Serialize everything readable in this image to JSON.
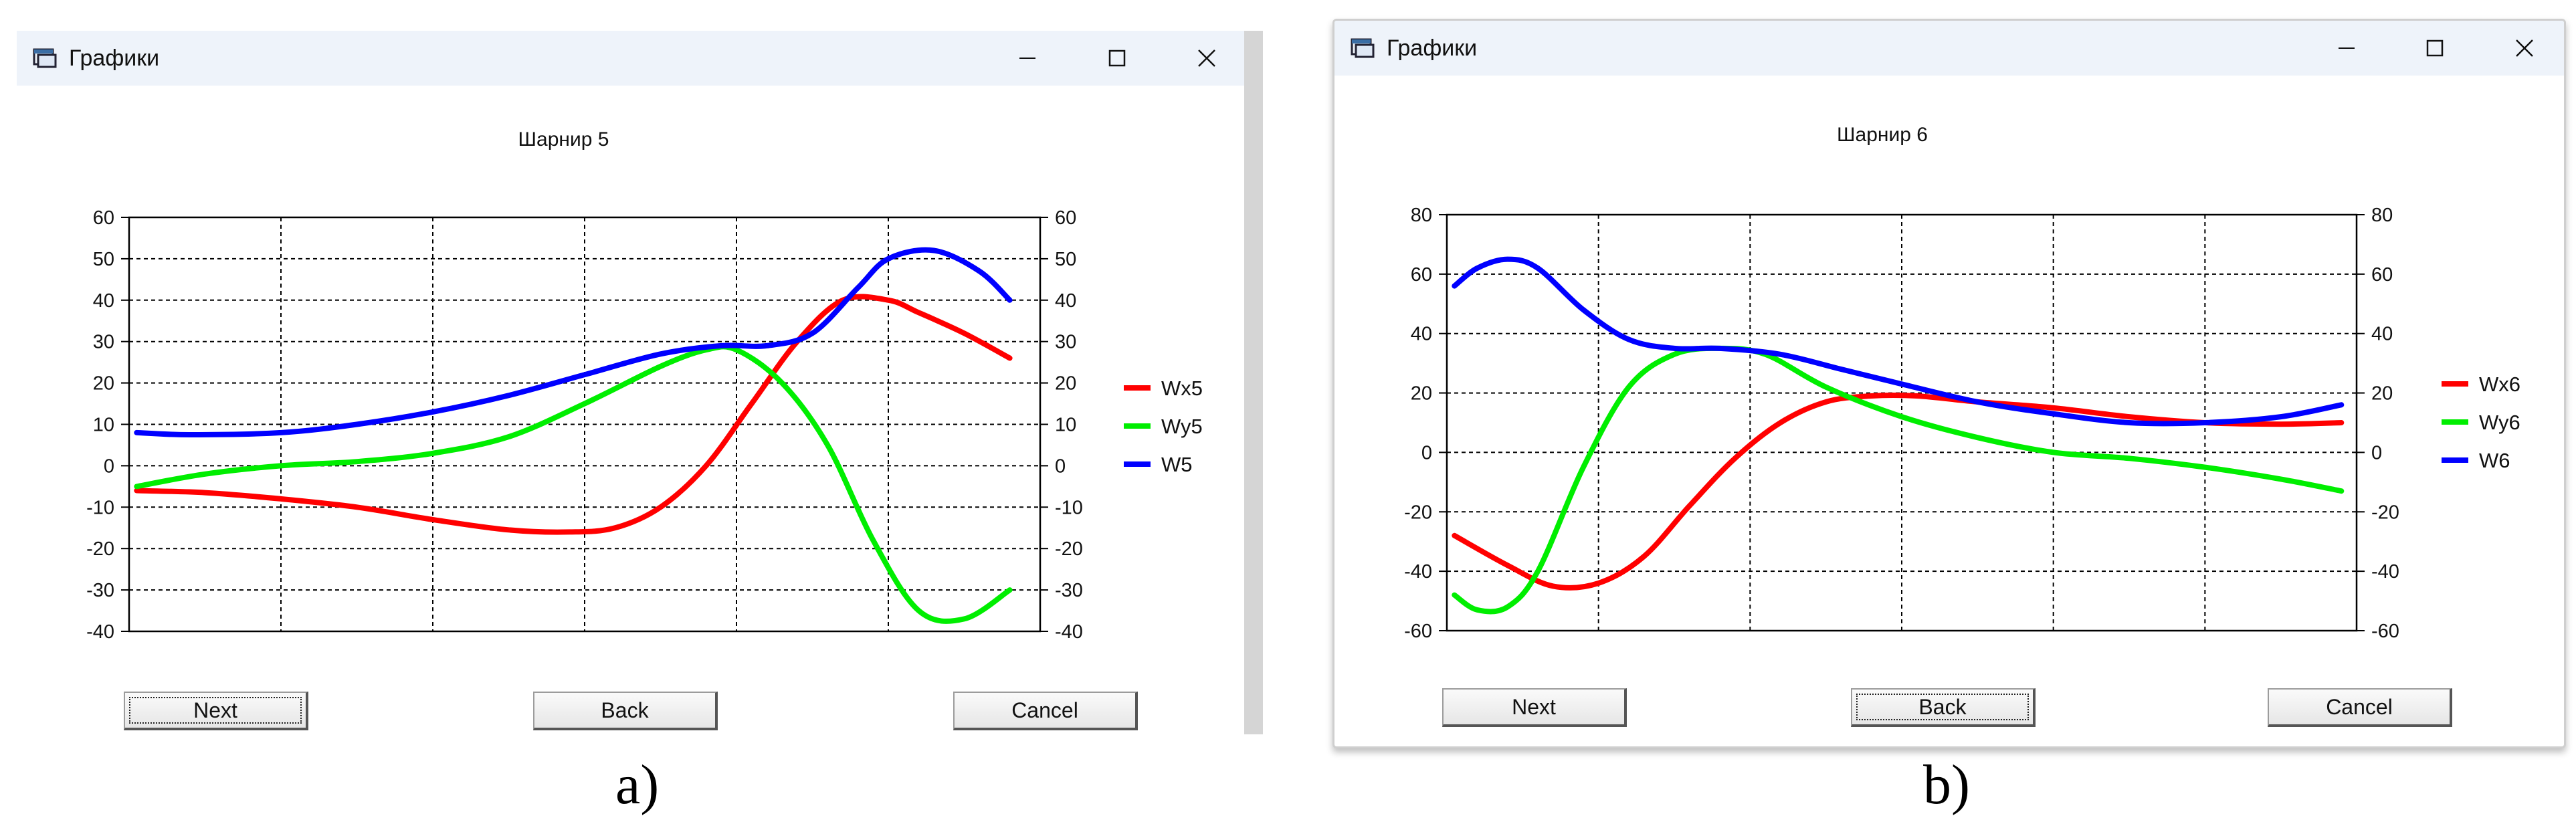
{
  "colors": {
    "red": "#ff0000",
    "green": "#00ee00",
    "blue": "#0000ff",
    "titlebar": "#eef3fa"
  },
  "windows": [
    {
      "title": "Графики",
      "icon": "window-app-icon",
      "controls": [
        "minimize-icon",
        "maximize-icon",
        "close-icon"
      ],
      "buttons": {
        "next": "Next",
        "back": "Back",
        "cancel": "Cancel"
      },
      "focused_button": "next",
      "caption": "a)",
      "chart_data": {
        "type": "line",
        "title": "Шарнир 5",
        "ylim": [
          -40,
          60
        ],
        "yticks": [
          -40,
          -30,
          -20,
          -10,
          0,
          10,
          20,
          30,
          40,
          50,
          60
        ],
        "x_gridlines": 6,
        "xlim": [
          0,
          6
        ],
        "grid": true,
        "legend_position": "right",
        "series": [
          {
            "name": "Wx5",
            "color": "#ff0000",
            "x": [
              0.05,
              0.5,
              1.0,
              1.5,
              2.0,
              2.5,
              2.9,
              3.2,
              3.5,
              3.8,
              4.1,
              4.4,
              4.7,
              5.0,
              5.2,
              5.5,
              5.8
            ],
            "y": [
              -6,
              -6.5,
              -8,
              -10,
              -13,
              -15.5,
              -16,
              -15,
              -10,
              0,
              15,
              30,
              40,
              40,
              37,
              32,
              26
            ]
          },
          {
            "name": "Wy5",
            "color": "#00ee00",
            "x": [
              0.05,
              0.5,
              1.0,
              1.5,
              2.0,
              2.5,
              3.0,
              3.5,
              3.8,
              4.0,
              4.3,
              4.6,
              4.9,
              5.2,
              5.5,
              5.8
            ],
            "y": [
              -5,
              -2,
              0,
              1,
              3,
              7,
              15,
              24,
              28,
              28,
              20,
              5,
              -18,
              -35,
              -37,
              -30
            ]
          },
          {
            "name": "W5",
            "color": "#0000ff",
            "x": [
              0.05,
              0.4,
              1.0,
              1.5,
              2.0,
              2.5,
              3.0,
              3.5,
              3.9,
              4.2,
              4.5,
              4.8,
              5.0,
              5.3,
              5.6,
              5.8
            ],
            "y": [
              8,
              7.5,
              8,
              10,
              13,
              17,
              22,
              27,
              29,
              29,
              32,
              43,
              50,
              52,
              47,
              40
            ]
          }
        ]
      }
    },
    {
      "title": "Графики",
      "icon": "window-app-icon",
      "controls": [
        "minimize-icon",
        "maximize-icon",
        "close-icon"
      ],
      "buttons": {
        "next": "Next",
        "back": "Back",
        "cancel": "Cancel"
      },
      "focused_button": "back",
      "caption": "b)",
      "chart_data": {
        "type": "line",
        "title": "Шарнир 6",
        "ylim": [
          -60,
          80
        ],
        "yticks": [
          -60,
          -40,
          -20,
          0,
          20,
          40,
          60,
          80
        ],
        "x_gridlines": 6,
        "xlim": [
          0,
          6
        ],
        "grid": true,
        "legend_position": "right",
        "series": [
          {
            "name": "Wx6",
            "color": "#ff0000",
            "x": [
              0.05,
              0.4,
              0.7,
              1.0,
              1.3,
              1.6,
              1.9,
              2.2,
              2.5,
              2.8,
              3.1,
              3.5,
              4.0,
              4.5,
              5.0,
              5.5,
              5.9
            ],
            "y": [
              -28,
              -38,
              -45,
              -44,
              -35,
              -18,
              -2,
              10,
              17,
              19,
              19,
              17,
              15,
              12,
              10,
              9.5,
              10
            ]
          },
          {
            "name": "Wy6",
            "color": "#00ee00",
            "x": [
              0.05,
              0.2,
              0.4,
              0.6,
              0.9,
              1.2,
              1.5,
              1.8,
              2.1,
              2.5,
              3.0,
              3.5,
              4.0,
              4.5,
              5.0,
              5.5,
              5.9
            ],
            "y": [
              -48,
              -53,
              -52,
              -40,
              -5,
              22,
              33,
              35,
              33,
              22,
              12,
              5,
              0,
              -2,
              -5,
              -9,
              -13
            ]
          },
          {
            "name": "W6",
            "color": "#0000ff",
            "x": [
              0.05,
              0.2,
              0.4,
              0.6,
              0.9,
              1.2,
              1.5,
              1.8,
              2.2,
              2.6,
              3.0,
              3.5,
              4.0,
              4.5,
              5.0,
              5.5,
              5.9
            ],
            "y": [
              56,
              62,
              65,
              62,
              48,
              38,
              35,
              35,
              33,
              28,
              23,
              17,
              13,
              10,
              10,
              12,
              16
            ]
          }
        ]
      }
    }
  ]
}
